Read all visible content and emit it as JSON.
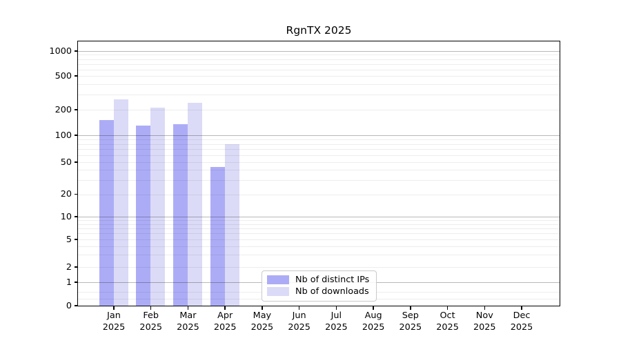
{
  "chart_data": {
    "type": "bar",
    "title": "RgnTX 2025",
    "xlabel": "",
    "ylabel": "",
    "yscale": "symlog",
    "grid": true,
    "legend_position": "inside lower-center",
    "categories": [
      "Jan 2025",
      "Feb 2025",
      "Mar 2025",
      "Apr 2025",
      "May 2025",
      "Jun 2025",
      "Jul 2025",
      "Aug 2025",
      "Sep 2025",
      "Oct 2025",
      "Nov 2025",
      "Dec 2025"
    ],
    "yticks": [
      0,
      1,
      2,
      5,
      10,
      20,
      50,
      100,
      200,
      500,
      1000
    ],
    "ylim": [
      0,
      1300
    ],
    "series": [
      {
        "name": "Nb of distinct IPs",
        "color": "#acacf6",
        "values": [
          150,
          131,
          134,
          44,
          0,
          0,
          0,
          0,
          0,
          0,
          0,
          0
        ]
      },
      {
        "name": "Nb of downloads",
        "color": "#dbdbf7",
        "values": [
          265,
          210,
          240,
          80,
          0,
          0,
          0,
          0,
          0,
          0,
          0,
          0
        ]
      }
    ]
  }
}
